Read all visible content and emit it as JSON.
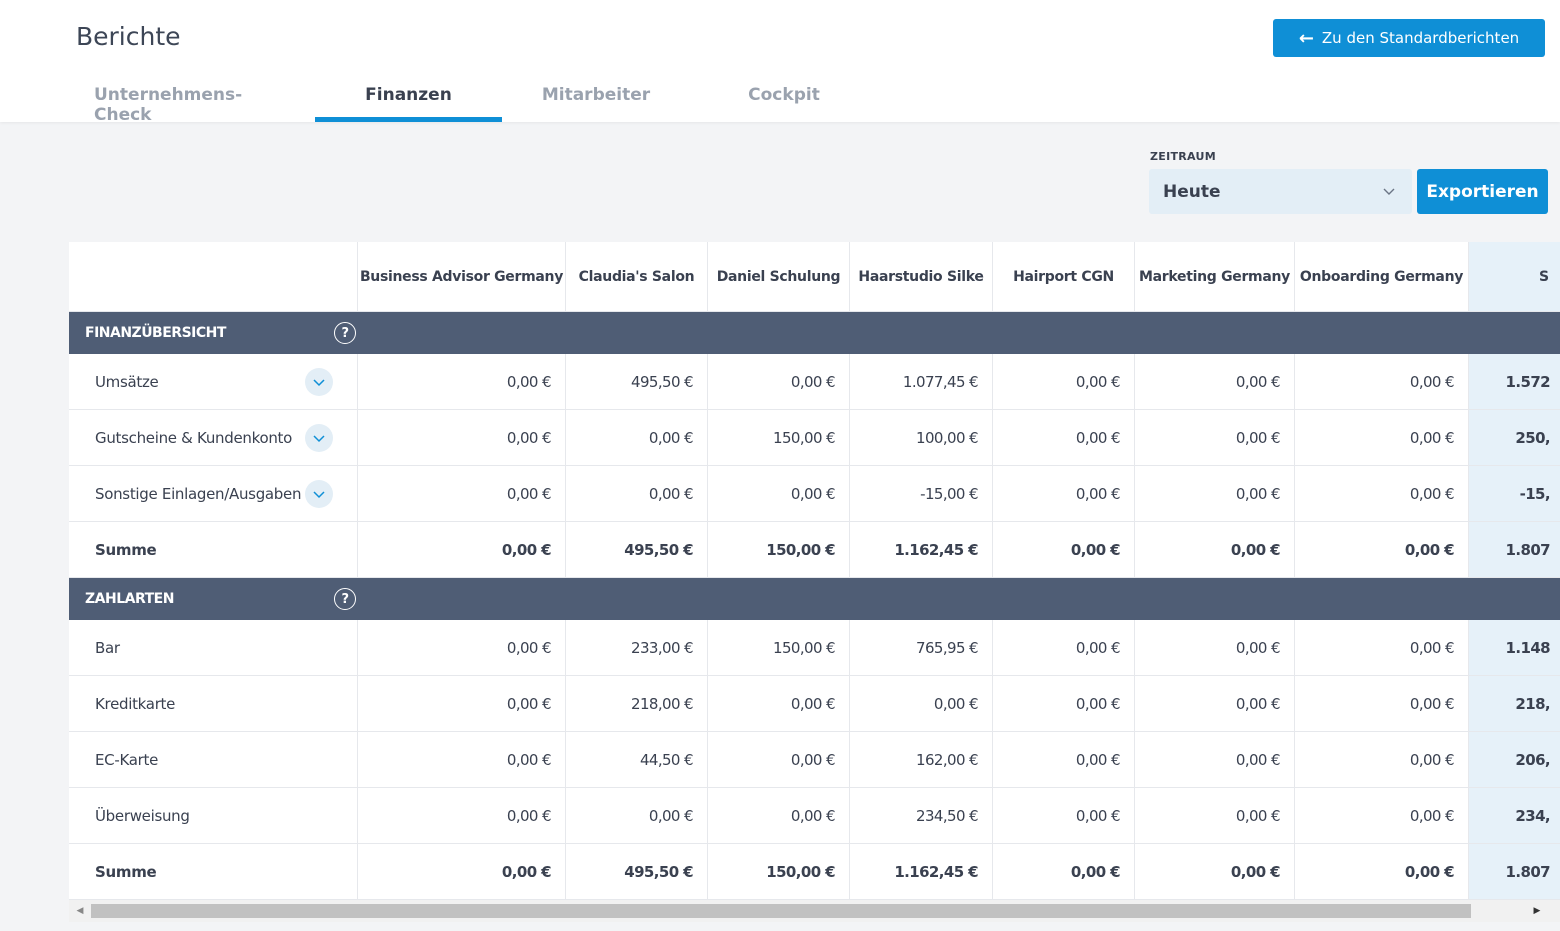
{
  "header": {
    "title": "Berichte",
    "back_button": "Zu den Standardberichten"
  },
  "tabs": [
    {
      "label": "Unternehmens-Check",
      "active": false
    },
    {
      "label": "Finanzen",
      "active": true
    },
    {
      "label": "Mitarbeiter",
      "active": false
    },
    {
      "label": "Cockpit",
      "active": false
    }
  ],
  "filter": {
    "label": "ZEITRAUM",
    "value": "Heute",
    "export_button": "Exportieren"
  },
  "columns": [
    "Business Advisor Germany",
    "Claudia's Salon",
    "Daniel Schulung",
    "Haarstudio Silke",
    "Hairport CGN",
    "Marketing Germany",
    "Onboarding Germany",
    "S"
  ],
  "sections": [
    {
      "title": "FINANZÜBERSICHT",
      "rows": [
        {
          "label": "Umsätze",
          "expandable": true,
          "bold": false,
          "values": [
            "0,00 €",
            "495,50 €",
            "0,00 €",
            "1.077,45 €",
            "0,00 €",
            "0,00 €",
            "0,00 €",
            "1.572"
          ]
        },
        {
          "label": "Gutscheine & Kundenkonto",
          "expandable": true,
          "bold": false,
          "values": [
            "0,00 €",
            "0,00 €",
            "150,00 €",
            "100,00 €",
            "0,00 €",
            "0,00 €",
            "0,00 €",
            "250,"
          ]
        },
        {
          "label": "Sonstige Einlagen/Ausgaben",
          "expandable": true,
          "bold": false,
          "values": [
            "0,00 €",
            "0,00 €",
            "0,00 €",
            "-15,00 €",
            "0,00 €",
            "0,00 €",
            "0,00 €",
            "-15,"
          ]
        },
        {
          "label": "Summe",
          "expandable": false,
          "bold": true,
          "values": [
            "0,00 €",
            "495,50 €",
            "150,00 €",
            "1.162,45 €",
            "0,00 €",
            "0,00 €",
            "0,00 €",
            "1.807"
          ]
        }
      ]
    },
    {
      "title": "ZAHLARTEN",
      "rows": [
        {
          "label": "Bar",
          "expandable": false,
          "bold": false,
          "values": [
            "0,00 €",
            "233,00 €",
            "150,00 €",
            "765,95 €",
            "0,00 €",
            "0,00 €",
            "0,00 €",
            "1.148"
          ]
        },
        {
          "label": "Kreditkarte",
          "expandable": false,
          "bold": false,
          "values": [
            "0,00 €",
            "218,00 €",
            "0,00 €",
            "0,00 €",
            "0,00 €",
            "0,00 €",
            "0,00 €",
            "218,"
          ]
        },
        {
          "label": "EC-Karte",
          "expandable": false,
          "bold": false,
          "values": [
            "0,00 €",
            "44,50 €",
            "0,00 €",
            "162,00 €",
            "0,00 €",
            "0,00 €",
            "0,00 €",
            "206,"
          ]
        },
        {
          "label": "Überweisung",
          "expandable": false,
          "bold": false,
          "values": [
            "0,00 €",
            "0,00 €",
            "0,00 €",
            "234,50 €",
            "0,00 €",
            "0,00 €",
            "0,00 €",
            "234,"
          ]
        },
        {
          "label": "Summe",
          "expandable": false,
          "bold": true,
          "values": [
            "0,00 €",
            "495,50 €",
            "150,00 €",
            "1.162,45 €",
            "0,00 €",
            "0,00 €",
            "0,00 €",
            "1.807"
          ]
        }
      ]
    }
  ],
  "icons": {
    "help": "help-circle-icon",
    "expand": "chevron-down-icon",
    "back": "arrow-left-icon"
  },
  "colors": {
    "accent": "#0f8fd6",
    "section_bg": "#4f5d75",
    "sum_column_bg": "#e6f1f9"
  }
}
